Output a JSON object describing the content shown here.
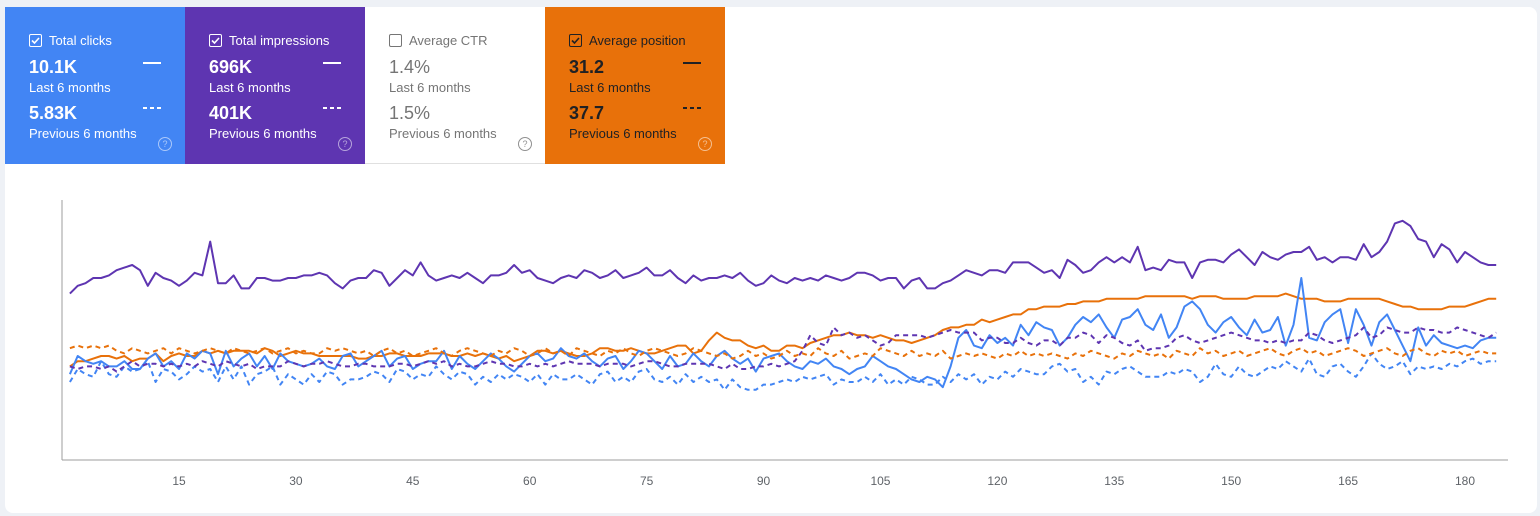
{
  "tiles": {
    "clicks": {
      "label": "Total clicks",
      "checked": true,
      "value_current": "10.1K",
      "period_current": "Last 6 months",
      "value_previous": "5.83K",
      "period_previous": "Previous 6 months",
      "color": "#4285f4"
    },
    "impressions": {
      "label": "Total impressions",
      "checked": true,
      "value_current": "696K",
      "period_current": "Last 6 months",
      "value_previous": "401K",
      "period_previous": "Previous 6 months",
      "color": "#5e35b1"
    },
    "ctr": {
      "label": "Average CTR",
      "checked": false,
      "value_current": "1.4%",
      "period_current": "Last 6 months",
      "value_previous": "1.5%",
      "period_previous": "Previous 6 months",
      "color": "#ffffff"
    },
    "position": {
      "label": "Average position",
      "checked": true,
      "value_current": "31.2",
      "period_current": "Last 6 months",
      "value_previous": "37.7",
      "period_previous": "Previous 6 months",
      "color": "#e8710a"
    },
    "help_glyph": "?"
  },
  "chart_data": {
    "type": "line",
    "x_ticks": [
      15,
      30,
      45,
      60,
      75,
      90,
      105,
      120,
      135,
      150,
      165,
      180
    ],
    "x_range": [
      1,
      184
    ],
    "y_axis_labels": "none",
    "grid": false,
    "series": [
      {
        "name": "Total impressions",
        "color": "#5e35b1",
        "dashed": false,
        "values": [
          64,
          67,
          68,
          70,
          70,
          71,
          73,
          74,
          75,
          73,
          67,
          72,
          70,
          69,
          67,
          69,
          72,
          71,
          84,
          68,
          68,
          71,
          66,
          66,
          70,
          70,
          69,
          69,
          70,
          70,
          71,
          71,
          72,
          71,
          68,
          66,
          69,
          70,
          70,
          73,
          72,
          67,
          70,
          73,
          71,
          76,
          71,
          69,
          70,
          71,
          70,
          72,
          70,
          68,
          71,
          71,
          72,
          75,
          72,
          73,
          70,
          69,
          68,
          70,
          71,
          70,
          73,
          72,
          70,
          71,
          73,
          70,
          71,
          72,
          74,
          71,
          71,
          73,
          70,
          68,
          71,
          69,
          70,
          70,
          71,
          70,
          72,
          69,
          67,
          68,
          71,
          69,
          68,
          70,
          69,
          70,
          69,
          71,
          70,
          69,
          70,
          72,
          72,
          71,
          69,
          70,
          70,
          66,
          69,
          70,
          66,
          66,
          68,
          69,
          71,
          73,
          72,
          71,
          73,
          73,
          72,
          76,
          76,
          76,
          74,
          72,
          73,
          70,
          77,
          75,
          72,
          73,
          76,
          78,
          76,
          78,
          76,
          82,
          73,
          74,
          73,
          77,
          76,
          76,
          70,
          76,
          77,
          77,
          76,
          79,
          81,
          78,
          75,
          80,
          78,
          77,
          79,
          80,
          80,
          82,
          77,
          78,
          76,
          78,
          78,
          77,
          83,
          78,
          80,
          84,
          91,
          92,
          90,
          85,
          84,
          78,
          83,
          81,
          76,
          80,
          78,
          76,
          75,
          75
        ]
      },
      {
        "name": "Average position",
        "color": "#e8710a",
        "dashed": false,
        "values": [
          36,
          38,
          38,
          39,
          40,
          40,
          39,
          40,
          38,
          39,
          39,
          41,
          38,
          40,
          41,
          40,
          40,
          42,
          41,
          42,
          41,
          42,
          42,
          42,
          41,
          43,
          42,
          40,
          41,
          42,
          41,
          41,
          40,
          40,
          40,
          40,
          40,
          39,
          39,
          40,
          40,
          41,
          41,
          40,
          40,
          40,
          41,
          41,
          41,
          40,
          40,
          41,
          40,
          41,
          40,
          39,
          40,
          38,
          39,
          40,
          42,
          42,
          41,
          42,
          41,
          40,
          40,
          41,
          43,
          43,
          42,
          42,
          43,
          42,
          41,
          41,
          42,
          43,
          44,
          44,
          41,
          42,
          46,
          49,
          47,
          46,
          46,
          44,
          43,
          44,
          42,
          42,
          44,
          44,
          43,
          45,
          46,
          47,
          48,
          48,
          49,
          48,
          48,
          47,
          48,
          47,
          46,
          46,
          45,
          46,
          47,
          48,
          50,
          51,
          51,
          52,
          52,
          54,
          53,
          54,
          55,
          56,
          56,
          58,
          58,
          59,
          59,
          59,
          60,
          60,
          61,
          61,
          61,
          62,
          62,
          62,
          62,
          62,
          63,
          63,
          63,
          63,
          63,
          63,
          62,
          63,
          63,
          63,
          62,
          62,
          62,
          62,
          63,
          63,
          63,
          63,
          64,
          63,
          62,
          62,
          62,
          61,
          61,
          61,
          62,
          62,
          62,
          62,
          62,
          61,
          60,
          59,
          59,
          58,
          58,
          58,
          58,
          59,
          59,
          59,
          60,
          61,
          62,
          62
        ]
      },
      {
        "name": "Total clicks",
        "color": "#4285f4",
        "dashed": false,
        "values": [
          33,
          40,
          38,
          37,
          38,
          36,
          36,
          38,
          35,
          35,
          39,
          41,
          36,
          38,
          35,
          41,
          39,
          42,
          41,
          33,
          42,
          36,
          39,
          41,
          36,
          40,
          35,
          41,
          38,
          37,
          36,
          37,
          39,
          36,
          35,
          40,
          41,
          36,
          38,
          40,
          42,
          36,
          39,
          40,
          35,
          37,
          38,
          38,
          42,
          35,
          40,
          37,
          35,
          38,
          41,
          39,
          36,
          34,
          37,
          40,
          41,
          38,
          39,
          43,
          40,
          39,
          41,
          38,
          36,
          39,
          40,
          35,
          38,
          42,
          41,
          38,
          35,
          40,
          36,
          37,
          41,
          38,
          36,
          40,
          42,
          39,
          37,
          39,
          34,
          39,
          40,
          41,
          38,
          36,
          35,
          38,
          37,
          39,
          36,
          35,
          33,
          35,
          36,
          40,
          38,
          36,
          35,
          33,
          31,
          30,
          32,
          31,
          28,
          36,
          47,
          50,
          44,
          43,
          48,
          45,
          47,
          44,
          52,
          48,
          53,
          51,
          50,
          44,
          47,
          52,
          55,
          53,
          56,
          51,
          47,
          54,
          55,
          58,
          52,
          50,
          56,
          47,
          51,
          59,
          61,
          58,
          52,
          49,
          53,
          55,
          51,
          48,
          54,
          49,
          50,
          55,
          44,
          52,
          70,
          47,
          46,
          53,
          56,
          58,
          45,
          58,
          52,
          44,
          53,
          56,
          50,
          44,
          38,
          51,
          44,
          48,
          45,
          44,
          43,
          44,
          43,
          46,
          47,
          47
        ]
      },
      {
        "name": "Total clicks (previous 6 months)",
        "color": "#4285f4",
        "dashed": true,
        "values": [
          30,
          35,
          33,
          32,
          38,
          33,
          32,
          36,
          34,
          35,
          38,
          30,
          35,
          34,
          31,
          33,
          36,
          34,
          35,
          30,
          36,
          31,
          36,
          29,
          33,
          34,
          36,
          29,
          33,
          31,
          29,
          33,
          30,
          34,
          33,
          29,
          31,
          31,
          32,
          34,
          33,
          30,
          35,
          34,
          31,
          33,
          32,
          36,
          33,
          31,
          34,
          33,
          29,
          32,
          30,
          33,
          31,
          33,
          32,
          30,
          33,
          29,
          33,
          31,
          31,
          33,
          31,
          29,
          33,
          34,
          30,
          32,
          30,
          34,
          35,
          31,
          30,
          32,
          29,
          33,
          30,
          32,
          30,
          31,
          27,
          31,
          28,
          27,
          27,
          29,
          29,
          30,
          31,
          30,
          32,
          31,
          32,
          33,
          29,
          31,
          30,
          30,
          32,
          30,
          33,
          29,
          31,
          29,
          32,
          31,
          29,
          29,
          32,
          30,
          33,
          31,
          33,
          29,
          32,
          31,
          34,
          32,
          35,
          34,
          33,
          33,
          36,
          37,
          34,
          35,
          30,
          32,
          29,
          34,
          33,
          35,
          36,
          34,
          32,
          32,
          32,
          34,
          33,
          35,
          34,
          30,
          32,
          37,
          33,
          32,
          36,
          33,
          32,
          34,
          36,
          35,
          38,
          36,
          34,
          39,
          33,
          32,
          36,
          37,
          34,
          32,
          36,
          41,
          37,
          35,
          36,
          38,
          33,
          36,
          35,
          36,
          35,
          37,
          36,
          38,
          39,
          37,
          38,
          38
        ]
      },
      {
        "name": "Total impressions (previous 6 months)",
        "color": "#5e35b1",
        "dashed": true,
        "values": [
          36,
          35,
          36,
          36,
          35,
          36,
          34,
          36,
          38,
          36,
          37,
          37,
          36,
          37,
          36,
          37,
          36,
          38,
          37,
          36,
          38,
          37,
          36,
          37,
          35,
          36,
          36,
          36,
          38,
          37,
          36,
          37,
          37,
          38,
          37,
          36,
          36,
          37,
          37,
          36,
          36,
          36,
          37,
          37,
          36,
          37,
          38,
          37,
          38,
          36,
          37,
          36,
          36,
          37,
          38,
          37,
          37,
          36,
          36,
          37,
          36,
          37,
          36,
          37,
          38,
          37,
          37,
          37,
          36,
          37,
          37,
          37,
          36,
          37,
          38,
          38,
          37,
          36,
          36,
          37,
          37,
          37,
          37,
          36,
          35,
          37,
          35,
          35,
          36,
          36,
          37,
          36,
          37,
          38,
          42,
          48,
          45,
          44,
          51,
          48,
          49,
          47,
          48,
          46,
          44,
          45,
          48,
          48,
          48,
          48,
          47,
          48,
          49,
          50,
          49,
          49,
          49,
          46,
          47,
          47,
          45,
          45,
          47,
          45,
          44,
          46,
          46,
          44,
          47,
          47,
          49,
          48,
          45,
          48,
          47,
          45,
          44,
          46,
          42,
          43,
          43,
          44,
          47,
          48,
          46,
          45,
          46,
          47,
          48,
          49,
          48,
          47,
          46,
          46,
          45,
          46,
          45,
          46,
          46,
          49,
          48,
          46,
          45,
          46,
          47,
          48,
          51,
          47,
          48,
          51,
          50,
          49,
          49,
          51,
          50,
          50,
          49,
          49,
          51,
          50,
          49,
          48,
          47,
          49
        ]
      },
      {
        "name": "Average position (previous 6 months)",
        "color": "#e8710a",
        "dashed": true,
        "values": [
          43,
          44,
          43,
          44,
          43,
          44,
          42,
          41,
          43,
          42,
          41,
          42,
          43,
          41,
          43,
          42,
          41,
          42,
          43,
          42,
          41,
          43,
          42,
          41,
          42,
          43,
          41,
          42,
          43,
          41,
          42,
          41,
          41,
          43,
          42,
          43,
          42,
          41,
          42,
          40,
          42,
          43,
          41,
          42,
          40,
          41,
          42,
          43,
          41,
          40,
          42,
          43,
          42,
          41,
          40,
          42,
          41,
          43,
          42,
          40,
          41,
          43,
          41,
          42,
          40,
          43,
          42,
          41,
          40,
          42,
          41,
          43,
          41,
          40,
          42,
          43,
          42,
          41,
          40,
          41,
          43,
          42,
          41,
          40,
          41,
          39,
          40,
          42,
          40,
          41,
          39,
          40,
          42,
          40,
          41,
          40,
          43,
          41,
          40,
          42,
          39,
          40,
          41,
          40,
          43,
          42,
          41,
          40,
          42,
          40,
          41,
          40,
          42,
          39,
          40,
          41,
          40,
          41,
          40,
          39,
          41,
          40,
          42,
          40,
          41,
          40,
          41,
          40,
          39,
          41,
          40,
          42,
          41,
          40,
          39,
          41,
          40,
          42,
          41,
          40,
          41,
          39,
          42,
          41,
          40,
          43,
          41,
          42,
          40,
          41,
          42,
          40,
          41,
          42,
          43,
          41,
          40,
          42,
          43,
          41,
          42,
          40,
          41,
          42,
          43,
          42,
          40,
          41,
          42,
          43,
          41,
          40,
          42,
          43,
          41,
          40,
          42,
          41,
          42,
          40,
          41,
          42,
          41,
          41
        ]
      }
    ]
  }
}
